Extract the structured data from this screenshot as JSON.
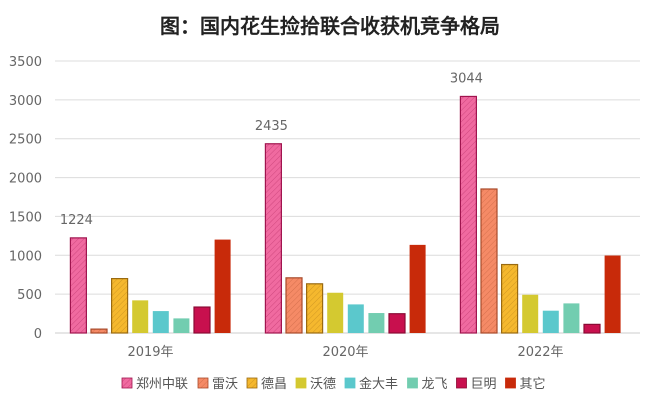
{
  "chart_data": {
    "type": "bar",
    "title": "图：国内花生捡拾联合收获机竞争格局",
    "categories": [
      "2019年",
      "2020年",
      "2022年"
    ],
    "ylim": [
      0,
      3500
    ],
    "yticks": [
      0,
      500,
      1000,
      1500,
      2000,
      2500,
      3000,
      3500
    ],
    "grid": true,
    "legend_position": "bottom",
    "series": [
      {
        "name": "郑州中联",
        "values": [
          1224,
          2435,
          3044
        ],
        "color": "#f06aa0",
        "border": "#a0144e",
        "hatched": true,
        "labeled": true
      },
      {
        "name": "雷沃",
        "values": [
          50,
          710,
          1853
        ],
        "color": "#f58a66",
        "border": "#a84a2a",
        "hatched": true,
        "labeled": false
      },
      {
        "name": "德昌",
        "values": [
          700,
          633,
          881
        ],
        "color": "#f5b82e",
        "border": "#9a6a10",
        "hatched": true,
        "labeled": false
      },
      {
        "name": "沃德",
        "values": [
          420,
          518,
          492
        ],
        "color": "#d4c930",
        "border": "#d4c930",
        "hatched": false,
        "labeled": false
      },
      {
        "name": "金大丰",
        "values": [
          282,
          368,
          287
        ],
        "color": "#5bc8cc",
        "border": "#5bc8cc",
        "hatched": false,
        "labeled": false
      },
      {
        "name": "龙飞",
        "values": [
          188,
          257,
          381
        ],
        "color": "#72cdb0",
        "border": "#72cdb0",
        "hatched": false,
        "labeled": false
      },
      {
        "name": "巨明",
        "values": [
          334,
          248,
          111
        ],
        "color": "#c8104e",
        "border": "#8a0a34",
        "hatched": false,
        "labeled": false
      },
      {
        "name": "其它",
        "values": [
          1202,
          1134,
          997
        ],
        "color": "#c82a0a",
        "border": "#c82a0a",
        "hatched": false,
        "labeled": false
      }
    ]
  }
}
